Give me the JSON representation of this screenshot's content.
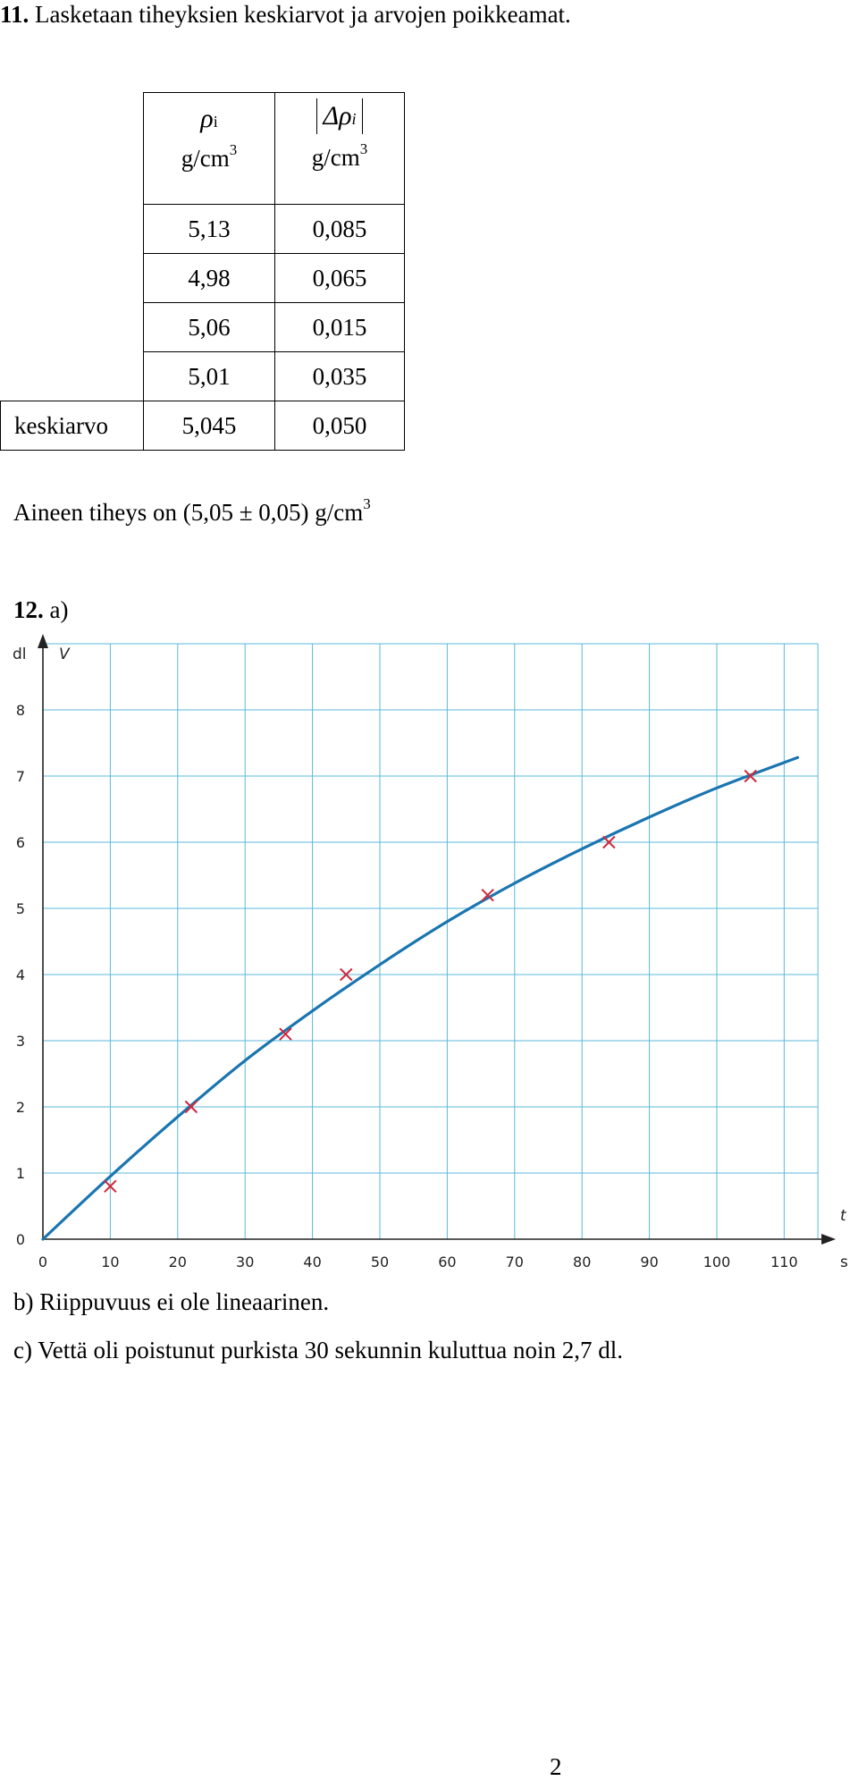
{
  "problem11": {
    "number": "11.",
    "text": "Lasketaan tiheyksien keskiarvot ja arvojen poikkeamat.",
    "table": {
      "col1_symbol": "ρ",
      "col1_subscript": "i",
      "col1_unit": "g/cm",
      "col2_symbol": "Δρ",
      "col2_subscript": "i",
      "col2_unit": "g/cm",
      "unit_exponent": "3",
      "rows": [
        {
          "label": "",
          "rho": "5,13",
          "delta": "0,085"
        },
        {
          "label": "",
          "rho": "4,98",
          "delta": "0,065"
        },
        {
          "label": "",
          "rho": "5,06",
          "delta": "0,015"
        },
        {
          "label": "",
          "rho": "5,01",
          "delta": "0,035"
        },
        {
          "label": "keskiarvo",
          "rho": "5,045",
          "delta": "0,050"
        }
      ]
    },
    "result_text": "Aineen tiheys on (5,05 ± 0,05) g/cm",
    "result_exponent": "3"
  },
  "problem12": {
    "number": "12.",
    "part_a": "a)",
    "part_b": "b) Riippuvuus ei ole lineaarinen.",
    "part_c": "c) Vettä oli poistunut purkista 30 sekunnin kuluttua noin 2,7 dl."
  },
  "chart_data": {
    "type": "scatter",
    "xlabel": "t",
    "xunit": "s",
    "ylabel": "V",
    "yunit": "dl",
    "xlim": [
      0,
      115
    ],
    "ylim": [
      0,
      8.5
    ],
    "x_ticks": [
      "0",
      "10",
      "20",
      "30",
      "40",
      "50",
      "60",
      "70",
      "80",
      "90",
      "100",
      "110"
    ],
    "y_ticks": [
      "0",
      "1",
      "2",
      "3",
      "4",
      "5",
      "6",
      "7",
      "8"
    ],
    "grid": true,
    "point_color": "#d0283c",
    "curve_color": "#1a75b0",
    "grid_color": "#5bbad8",
    "points": [
      {
        "x": 10,
        "y": 0.8
      },
      {
        "x": 22,
        "y": 2.0
      },
      {
        "x": 36,
        "y": 3.1
      },
      {
        "x": 45,
        "y": 4.0
      },
      {
        "x": 66,
        "y": 5.2
      },
      {
        "x": 84,
        "y": 6.0
      },
      {
        "x": 105,
        "y": 7.0
      }
    ],
    "fit_curve": [
      {
        "x": 0,
        "y": 0
      },
      {
        "x": 10,
        "y": 0.95
      },
      {
        "x": 20,
        "y": 1.85
      },
      {
        "x": 30,
        "y": 2.7
      },
      {
        "x": 40,
        "y": 3.45
      },
      {
        "x": 50,
        "y": 4.15
      },
      {
        "x": 60,
        "y": 4.8
      },
      {
        "x": 70,
        "y": 5.38
      },
      {
        "x": 80,
        "y": 5.9
      },
      {
        "x": 90,
        "y": 6.38
      },
      {
        "x": 100,
        "y": 6.82
      },
      {
        "x": 112,
        "y": 7.28
      }
    ]
  },
  "page_number": "2"
}
